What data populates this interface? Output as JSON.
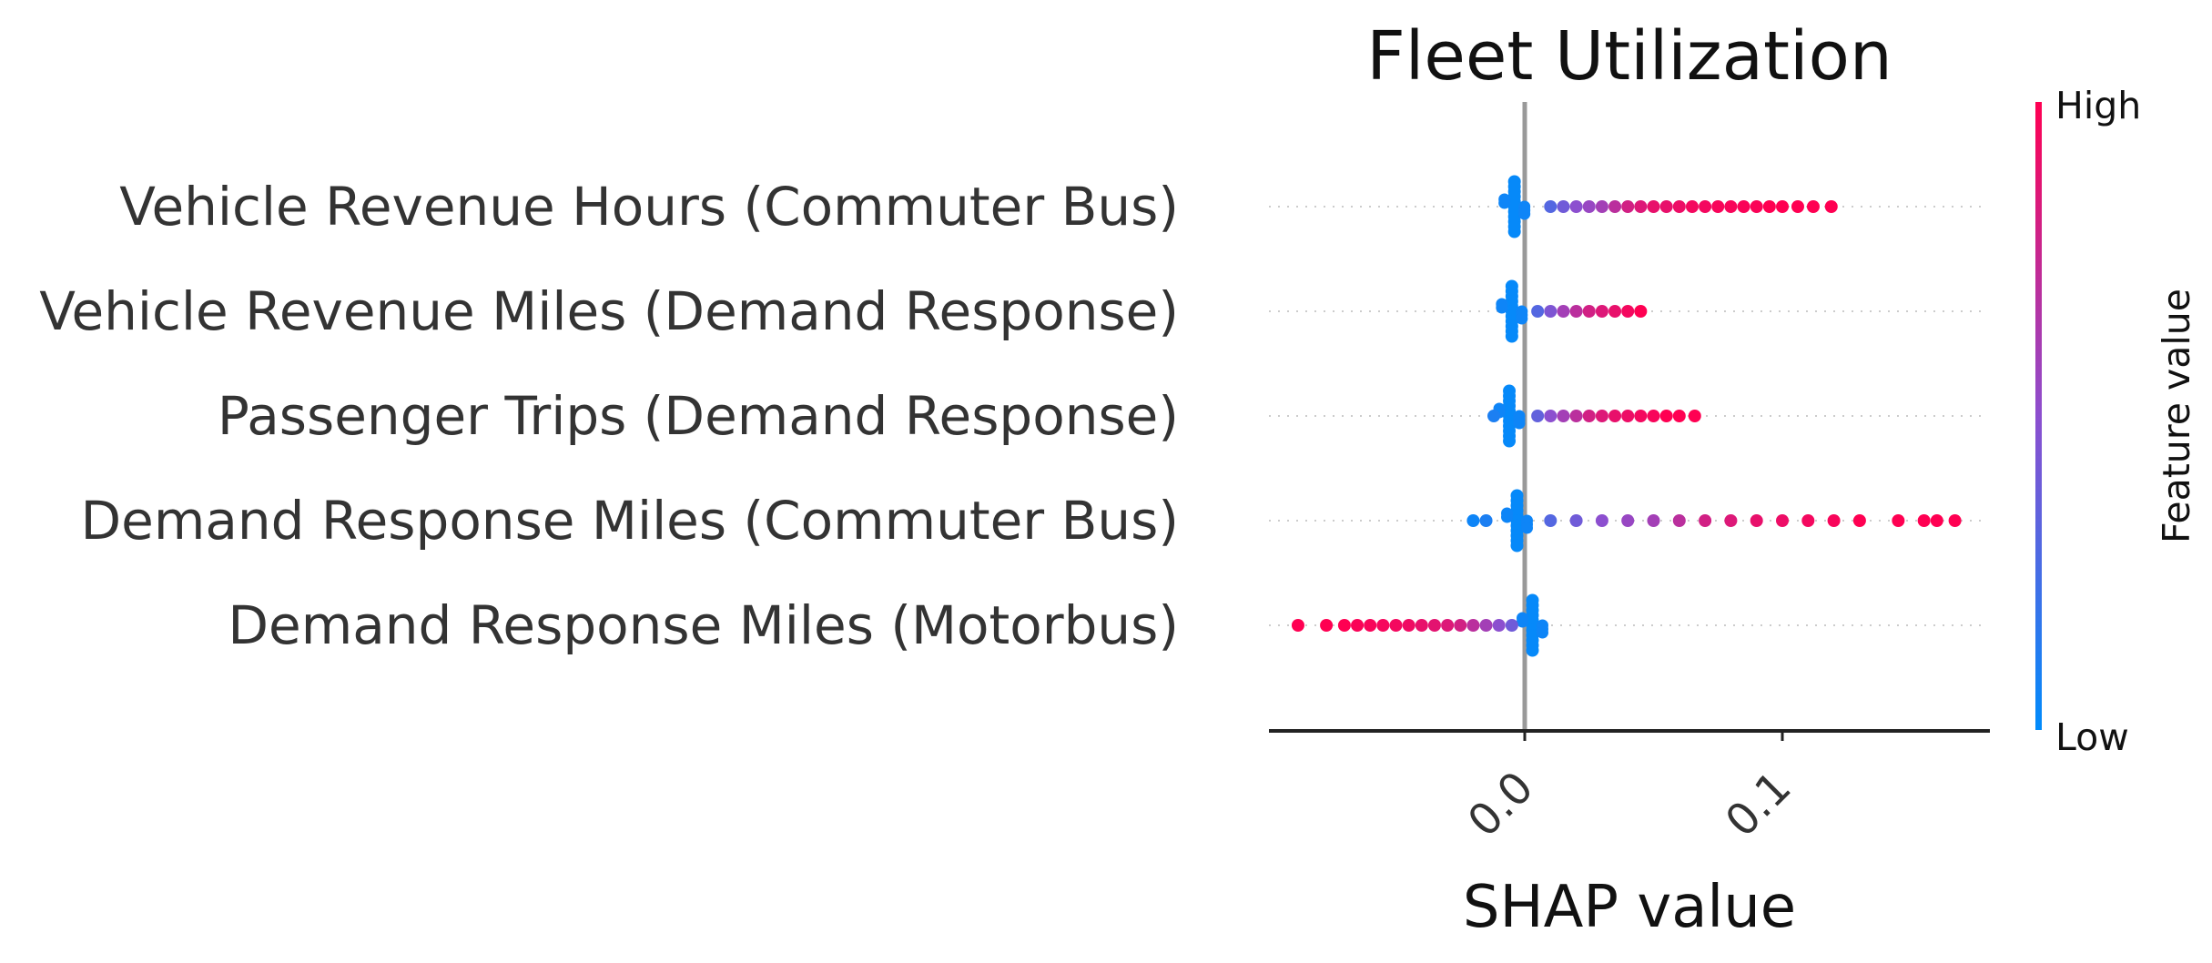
{
  "chart_data": {
    "type": "scatter",
    "subtype": "shap-beeswarm",
    "title": "Fleet Utilization",
    "xlabel": "SHAP value",
    "xlim": [
      -0.1,
      0.18
    ],
    "xticks": [
      0.0,
      0.1
    ],
    "xtick_labels": [
      "0.0",
      "0.1"
    ],
    "zero_line": 0.0,
    "colorbar": {
      "label": "Feature value",
      "high_label": "High",
      "low_label": "Low",
      "low_color": "#008bfb",
      "mid_color": "#8c4fcf",
      "high_color": "#ff0052"
    },
    "features": [
      {
        "name": "Vehicle Revenue Hours (Commuter Bus)",
        "low_cluster": -0.004,
        "points": [
          [
            0.01,
            0.3
          ],
          [
            0.015,
            0.4
          ],
          [
            0.02,
            0.5
          ],
          [
            0.025,
            0.55
          ],
          [
            0.03,
            0.6
          ],
          [
            0.035,
            0.7
          ],
          [
            0.04,
            0.8
          ],
          [
            0.045,
            0.85
          ],
          [
            0.05,
            0.9
          ],
          [
            0.055,
            0.9
          ],
          [
            0.06,
            0.92
          ],
          [
            0.065,
            0.95
          ],
          [
            0.07,
            0.95
          ],
          [
            0.075,
            0.97
          ],
          [
            0.08,
            0.97
          ],
          [
            0.085,
            0.98
          ],
          [
            0.09,
            0.98
          ],
          [
            0.095,
            1.0
          ],
          [
            0.1,
            1.0
          ],
          [
            0.106,
            1.0
          ],
          [
            0.112,
            1.0
          ],
          [
            0.119,
            1.0
          ]
        ]
      },
      {
        "name": "Vehicle Revenue Miles (Demand Response)",
        "low_cluster": -0.005,
        "points": [
          [
            0.005,
            0.3
          ],
          [
            0.01,
            0.45
          ],
          [
            0.015,
            0.6
          ],
          [
            0.02,
            0.7
          ],
          [
            0.025,
            0.8
          ],
          [
            0.03,
            0.85
          ],
          [
            0.035,
            0.9
          ],
          [
            0.04,
            0.95
          ],
          [
            0.045,
            1.0
          ]
        ]
      },
      {
        "name": "Passenger Trips (Demand Response)",
        "low_cluster": -0.006,
        "points": [
          [
            -0.012,
            0.1
          ],
          [
            0.005,
            0.35
          ],
          [
            0.01,
            0.5
          ],
          [
            0.015,
            0.6
          ],
          [
            0.02,
            0.7
          ],
          [
            0.025,
            0.8
          ],
          [
            0.03,
            0.85
          ],
          [
            0.035,
            0.9
          ],
          [
            0.04,
            0.92
          ],
          [
            0.045,
            0.95
          ],
          [
            0.05,
            0.97
          ],
          [
            0.055,
            1.0
          ],
          [
            0.06,
            1.0
          ],
          [
            0.066,
            1.0
          ]
        ]
      },
      {
        "name": "Demand Response Miles (Commuter Bus)",
        "low_cluster": -0.003,
        "points": [
          [
            -0.02,
            0.05
          ],
          [
            -0.015,
            0.1
          ],
          [
            0.01,
            0.3
          ],
          [
            0.02,
            0.4
          ],
          [
            0.03,
            0.5
          ],
          [
            0.04,
            0.55
          ],
          [
            0.05,
            0.6
          ],
          [
            0.06,
            0.7
          ],
          [
            0.07,
            0.8
          ],
          [
            0.08,
            0.85
          ],
          [
            0.09,
            0.9
          ],
          [
            0.1,
            0.92
          ],
          [
            0.11,
            0.95
          ],
          [
            0.12,
            0.97
          ],
          [
            0.13,
            1.0
          ],
          [
            0.145,
            1.0
          ],
          [
            0.155,
            1.0
          ],
          [
            0.16,
            1.0
          ],
          [
            0.167,
            1.0
          ]
        ]
      },
      {
        "name": "Demand Response Miles (Motorbus)",
        "low_cluster": 0.003,
        "points": [
          [
            -0.088,
            1.0
          ],
          [
            -0.077,
            1.0
          ],
          [
            -0.07,
            1.0
          ],
          [
            -0.065,
            0.98
          ],
          [
            -0.06,
            0.97
          ],
          [
            -0.055,
            0.96
          ],
          [
            -0.05,
            0.95
          ],
          [
            -0.045,
            0.93
          ],
          [
            -0.04,
            0.9
          ],
          [
            -0.035,
            0.88
          ],
          [
            -0.03,
            0.85
          ],
          [
            -0.025,
            0.8
          ],
          [
            -0.02,
            0.7
          ],
          [
            -0.015,
            0.6
          ],
          [
            -0.01,
            0.5
          ],
          [
            -0.005,
            0.4
          ]
        ]
      }
    ],
    "grid": false,
    "legend": "colorbar-right"
  }
}
